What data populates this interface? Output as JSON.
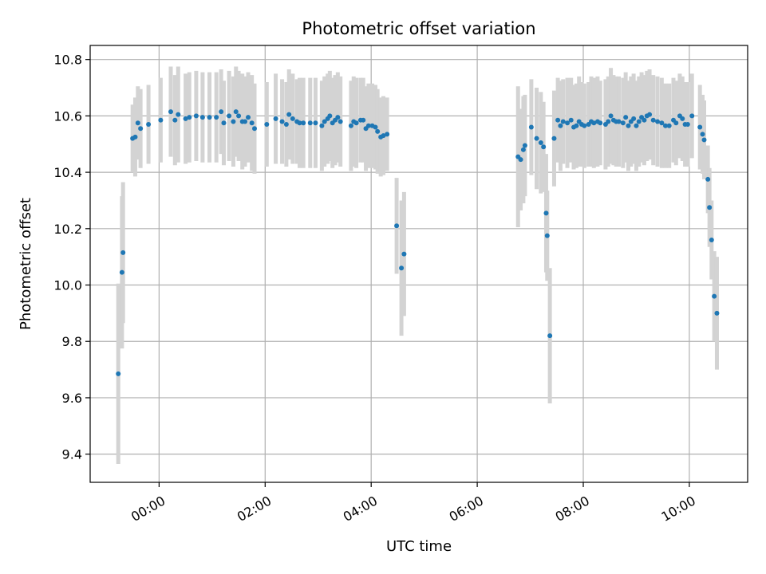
{
  "chart_data": {
    "type": "scatter",
    "title": "Photometric offset variation",
    "xlabel": "UTC time",
    "ylabel": "Photometric offset",
    "xlim": [
      -1.3,
      11.1
    ],
    "ylim": [
      9.3,
      10.85
    ],
    "grid": true,
    "legend": "none",
    "colors": {
      "marker": "#1f77b4",
      "errorbar": "#d3d3d3",
      "grid": "#b0b0b0",
      "axes": "#000000"
    },
    "x_ticks": [
      0,
      2,
      4,
      6,
      8,
      10
    ],
    "x_tick_labels": [
      "00:00",
      "02:00",
      "04:00",
      "06:00",
      "08:00",
      "10:00"
    ],
    "y_ticks": [
      9.4,
      9.6,
      9.8,
      10.0,
      10.2,
      10.4,
      10.6,
      10.8
    ],
    "y_tick_labels": [
      "9.4",
      "9.6",
      "9.8",
      "10.0",
      "10.2",
      "10.4",
      "10.6",
      "10.8"
    ],
    "x_unit": "hours UTC",
    "series": [
      {
        "name": "Photometric offset",
        "points": [
          [
            -0.77,
            9.685,
            0.32
          ],
          [
            -0.7,
            10.045,
            0.27
          ],
          [
            -0.68,
            10.115,
            0.25
          ],
          [
            -0.5,
            10.52,
            0.12
          ],
          [
            -0.45,
            10.525,
            0.14
          ],
          [
            -0.4,
            10.575,
            0.13
          ],
          [
            -0.35,
            10.555,
            0.14
          ],
          [
            -0.2,
            10.57,
            0.14
          ],
          [
            0.03,
            10.585,
            0.15
          ],
          [
            0.22,
            10.615,
            0.16
          ],
          [
            0.3,
            10.585,
            0.16
          ],
          [
            0.36,
            10.605,
            0.17
          ],
          [
            0.5,
            10.59,
            0.16
          ],
          [
            0.57,
            10.595,
            0.16
          ],
          [
            0.7,
            10.6,
            0.16
          ],
          [
            0.82,
            10.595,
            0.16
          ],
          [
            0.95,
            10.595,
            0.16
          ],
          [
            1.08,
            10.595,
            0.16
          ],
          [
            1.17,
            10.615,
            0.15
          ],
          [
            1.22,
            10.575,
            0.15
          ],
          [
            1.32,
            10.6,
            0.16
          ],
          [
            1.4,
            10.58,
            0.16
          ],
          [
            1.45,
            10.615,
            0.16
          ],
          [
            1.5,
            10.6,
            0.16
          ],
          [
            1.57,
            10.58,
            0.17
          ],
          [
            1.62,
            10.58,
            0.16
          ],
          [
            1.68,
            10.595,
            0.16
          ],
          [
            1.75,
            10.575,
            0.17
          ],
          [
            1.8,
            10.555,
            0.16
          ],
          [
            2.03,
            10.57,
            0.15
          ],
          [
            2.2,
            10.59,
            0.16
          ],
          [
            2.32,
            10.58,
            0.15
          ],
          [
            2.4,
            10.57,
            0.15
          ],
          [
            2.45,
            10.605,
            0.16
          ],
          [
            2.52,
            10.59,
            0.16
          ],
          [
            2.6,
            10.58,
            0.15
          ],
          [
            2.65,
            10.575,
            0.16
          ],
          [
            2.72,
            10.575,
            0.16
          ],
          [
            2.85,
            10.575,
            0.16
          ],
          [
            2.95,
            10.575,
            0.16
          ],
          [
            3.07,
            10.565,
            0.16
          ],
          [
            3.12,
            10.58,
            0.16
          ],
          [
            3.18,
            10.59,
            0.16
          ],
          [
            3.22,
            10.6,
            0.16
          ],
          [
            3.27,
            10.575,
            0.16
          ],
          [
            3.32,
            10.585,
            0.16
          ],
          [
            3.37,
            10.595,
            0.16
          ],
          [
            3.42,
            10.58,
            0.16
          ],
          [
            3.62,
            10.565,
            0.16
          ],
          [
            3.67,
            10.58,
            0.16
          ],
          [
            3.72,
            10.575,
            0.16
          ],
          [
            3.8,
            10.585,
            0.15
          ],
          [
            3.85,
            10.585,
            0.15
          ],
          [
            3.9,
            10.555,
            0.15
          ],
          [
            3.95,
            10.565,
            0.15
          ],
          [
            4.02,
            10.565,
            0.15
          ],
          [
            4.08,
            10.56,
            0.15
          ],
          [
            4.12,
            10.545,
            0.15
          ],
          [
            4.18,
            10.525,
            0.14
          ],
          [
            4.23,
            10.53,
            0.14
          ],
          [
            4.3,
            10.535,
            0.13
          ],
          [
            4.48,
            10.21,
            0.17
          ],
          [
            4.57,
            10.06,
            0.24
          ],
          [
            4.62,
            10.11,
            0.22
          ],
          [
            6.77,
            10.455,
            0.25
          ],
          [
            6.82,
            10.445,
            0.18
          ],
          [
            6.87,
            10.48,
            0.19
          ],
          [
            6.9,
            10.495,
            0.18
          ],
          [
            7.02,
            10.56,
            0.17
          ],
          [
            7.12,
            10.52,
            0.18
          ],
          [
            7.2,
            10.505,
            0.18
          ],
          [
            7.25,
            10.49,
            0.16
          ],
          [
            7.3,
            10.255,
            0.21
          ],
          [
            7.32,
            10.175,
            0.16
          ],
          [
            7.37,
            9.82,
            0.24
          ],
          [
            7.45,
            10.52,
            0.17
          ],
          [
            7.52,
            10.585,
            0.15
          ],
          [
            7.57,
            10.565,
            0.16
          ],
          [
            7.62,
            10.58,
            0.15
          ],
          [
            7.7,
            10.575,
            0.16
          ],
          [
            7.77,
            10.585,
            0.15
          ],
          [
            7.82,
            10.56,
            0.15
          ],
          [
            7.87,
            10.565,
            0.15
          ],
          [
            7.92,
            10.58,
            0.16
          ],
          [
            7.97,
            10.57,
            0.15
          ],
          [
            8.02,
            10.565,
            0.15
          ],
          [
            8.1,
            10.57,
            0.15
          ],
          [
            8.15,
            10.58,
            0.16
          ],
          [
            8.2,
            10.575,
            0.16
          ],
          [
            8.27,
            10.58,
            0.16
          ],
          [
            8.32,
            10.575,
            0.15
          ],
          [
            8.42,
            10.57,
            0.16
          ],
          [
            8.47,
            10.58,
            0.16
          ],
          [
            8.52,
            10.6,
            0.17
          ],
          [
            8.57,
            10.585,
            0.16
          ],
          [
            8.62,
            10.58,
            0.16
          ],
          [
            8.67,
            10.58,
            0.16
          ],
          [
            8.75,
            10.575,
            0.16
          ],
          [
            8.8,
            10.595,
            0.16
          ],
          [
            8.85,
            10.565,
            0.16
          ],
          [
            8.9,
            10.58,
            0.16
          ],
          [
            8.95,
            10.59,
            0.16
          ],
          [
            9.0,
            10.565,
            0.16
          ],
          [
            9.05,
            10.58,
            0.16
          ],
          [
            9.1,
            10.595,
            0.16
          ],
          [
            9.15,
            10.585,
            0.16
          ],
          [
            9.2,
            10.6,
            0.16
          ],
          [
            9.25,
            10.605,
            0.16
          ],
          [
            9.32,
            10.585,
            0.16
          ],
          [
            9.4,
            10.58,
            0.16
          ],
          [
            9.48,
            10.575,
            0.16
          ],
          [
            9.55,
            10.565,
            0.15
          ],
          [
            9.62,
            10.565,
            0.15
          ],
          [
            9.7,
            10.585,
            0.15
          ],
          [
            9.75,
            10.575,
            0.15
          ],
          [
            9.82,
            10.6,
            0.15
          ],
          [
            9.87,
            10.59,
            0.15
          ],
          [
            9.92,
            10.57,
            0.15
          ],
          [
            9.97,
            10.57,
            0.15
          ],
          [
            10.05,
            10.6,
            0.15
          ],
          [
            10.2,
            10.56,
            0.15
          ],
          [
            10.25,
            10.535,
            0.14
          ],
          [
            10.28,
            10.515,
            0.14
          ],
          [
            10.35,
            10.375,
            0.12
          ],
          [
            10.38,
            10.275,
            0.14
          ],
          [
            10.42,
            10.16,
            0.14
          ],
          [
            10.47,
            9.96,
            0.16
          ],
          [
            10.52,
            9.9,
            0.2
          ]
        ]
      }
    ]
  }
}
